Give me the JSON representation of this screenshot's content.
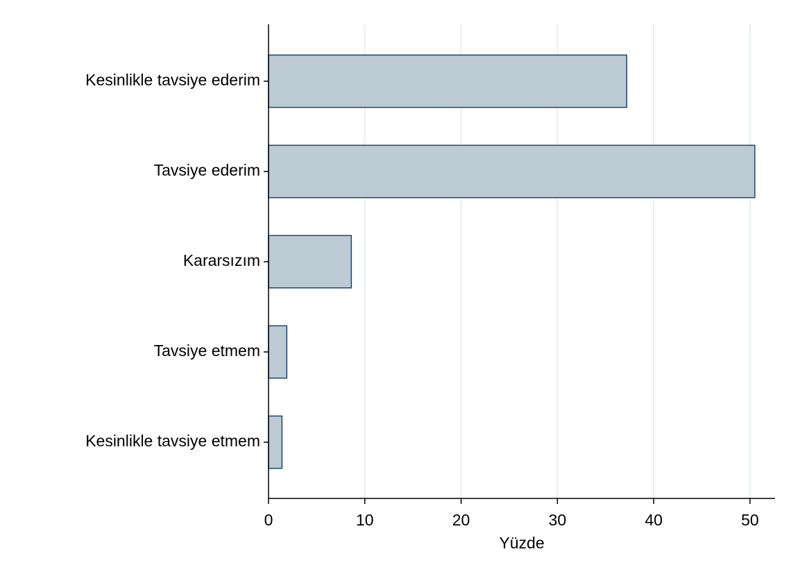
{
  "chart_data": {
    "type": "bar",
    "orientation": "horizontal",
    "categories": [
      "Kesinlikle tavsiye ederim",
      "Tavsiye ederim",
      "Kararsızım",
      "Tavsiye etmem",
      "Kesinlikle tavsiye etmem"
    ],
    "values": [
      37.2,
      50.5,
      8.6,
      1.9,
      1.4
    ],
    "color": "#bccad4",
    "edge_color": "#1a476f",
    "xlabel": "Yüzde",
    "xlim": [
      0,
      52.6
    ],
    "xticks": [
      0,
      10,
      20,
      30,
      40,
      50
    ],
    "grid": true
  }
}
